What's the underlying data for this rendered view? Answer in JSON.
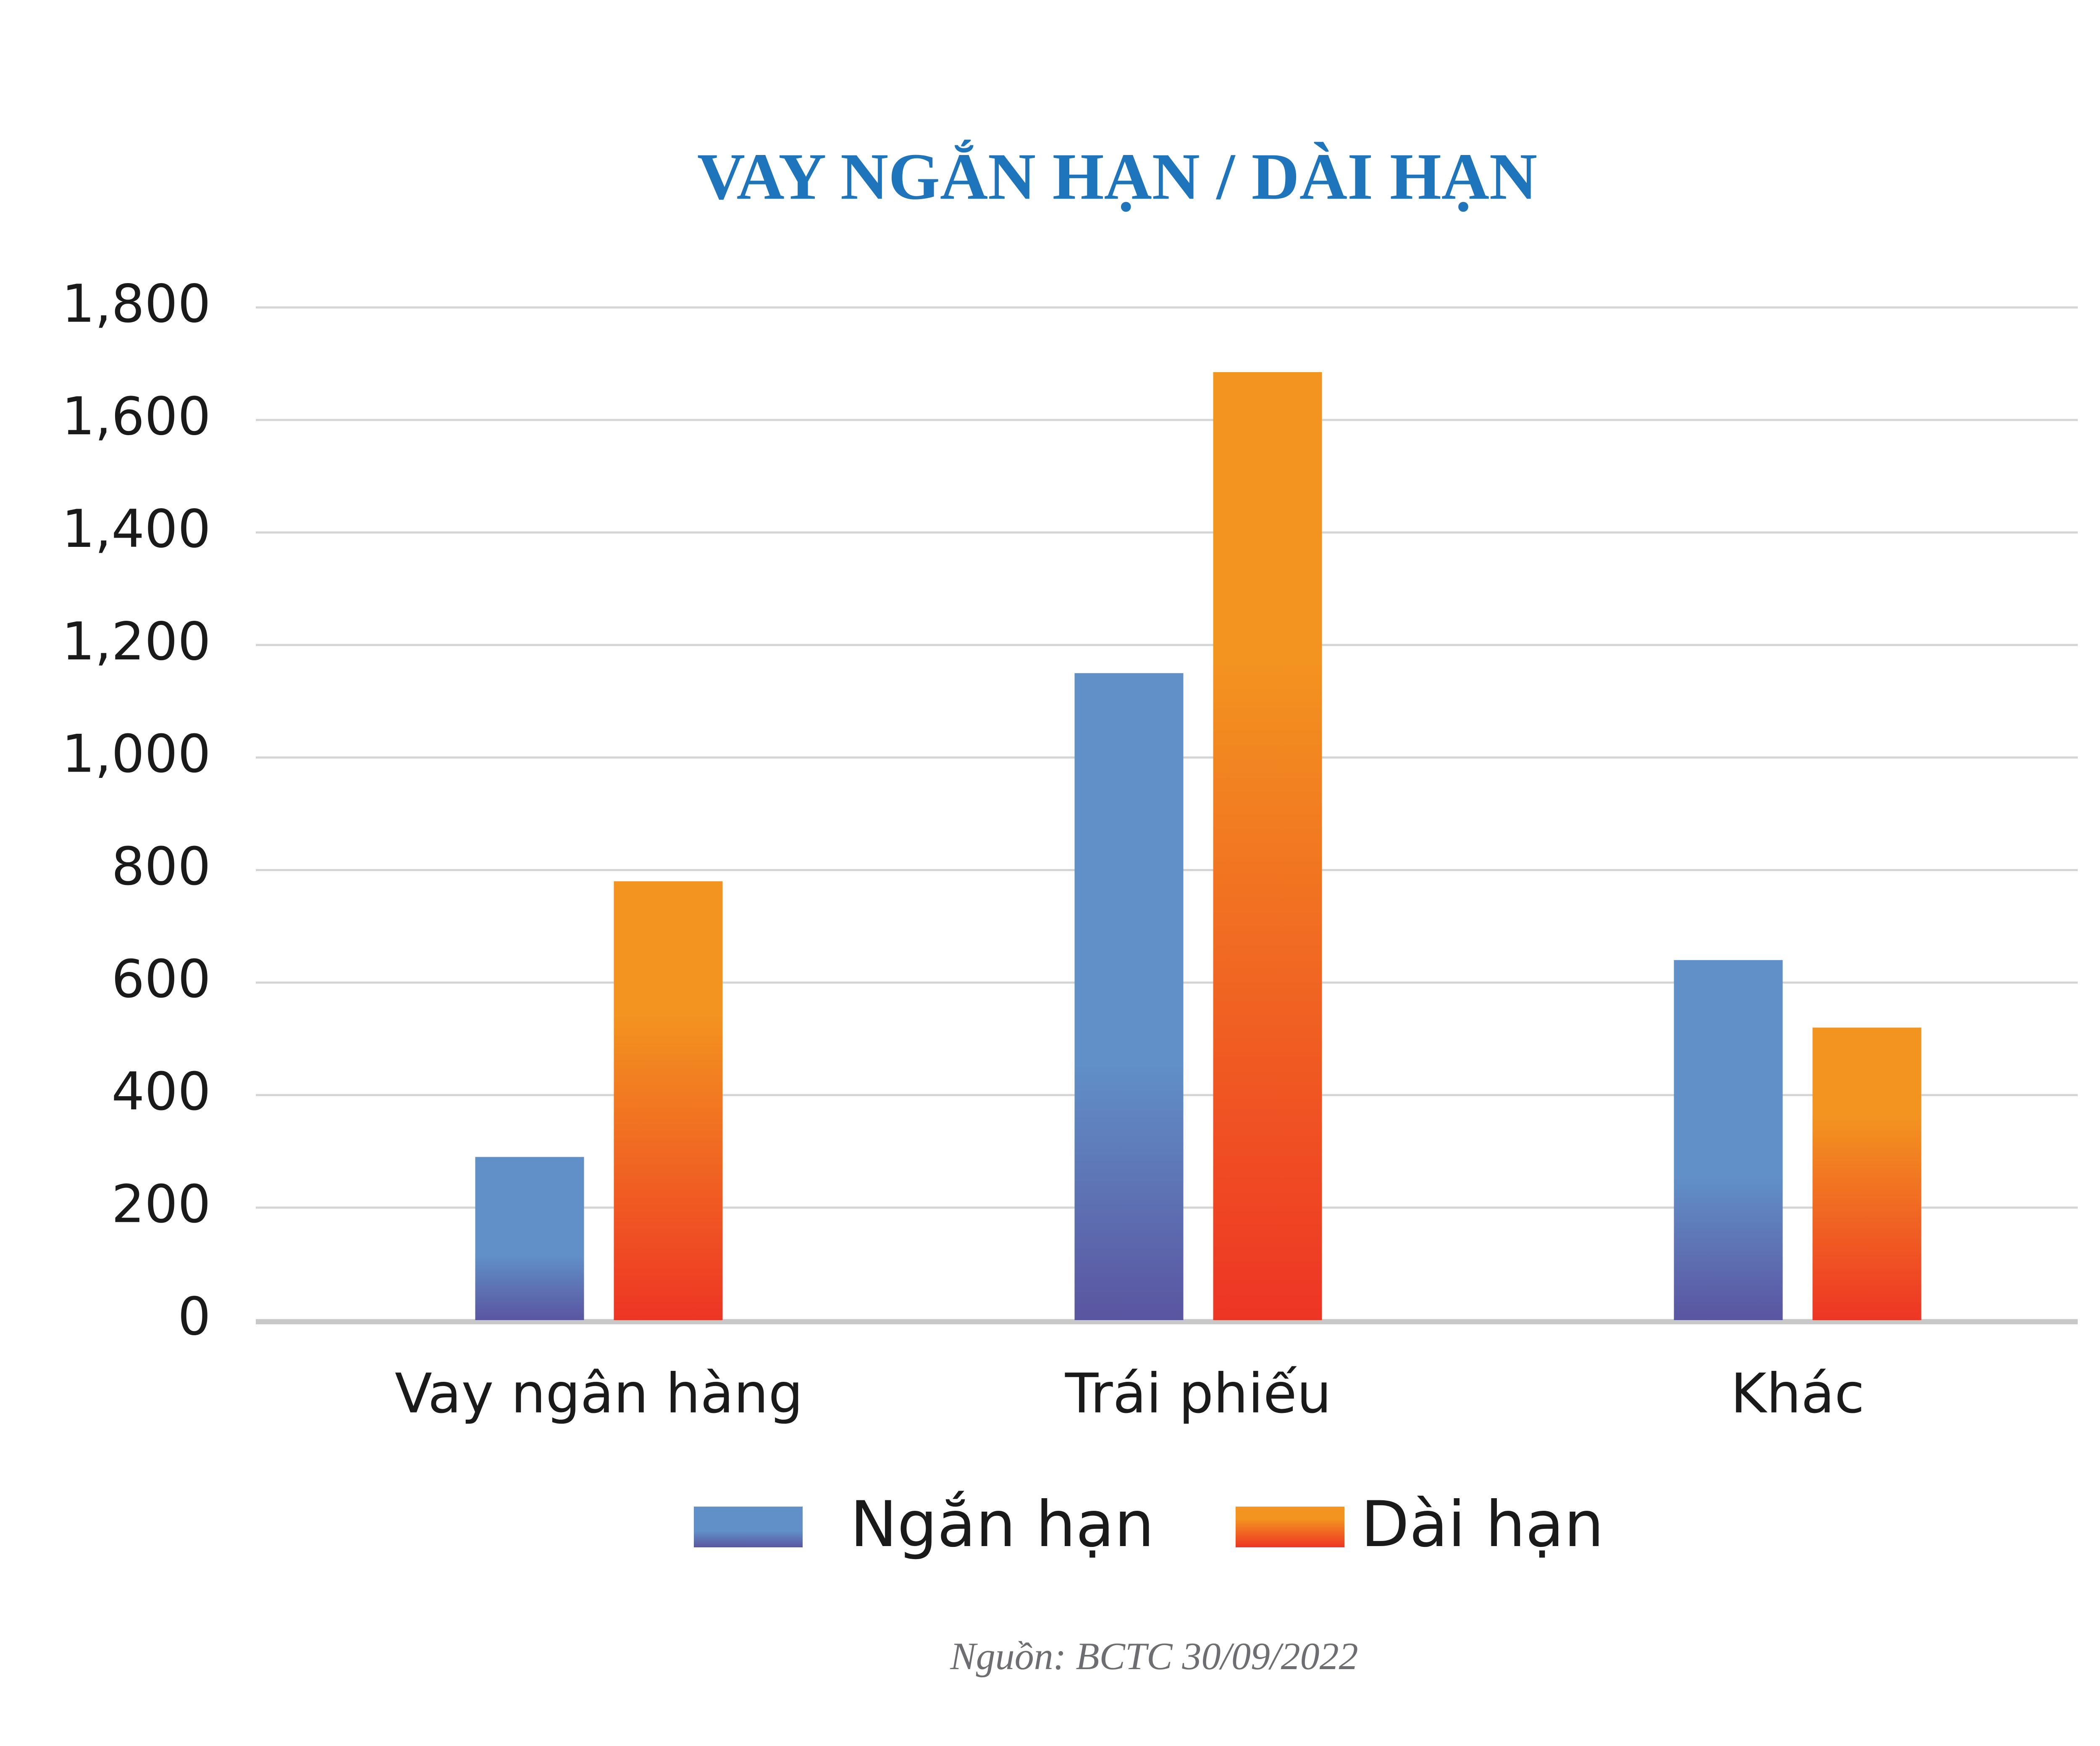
{
  "chart_data": {
    "type": "bar",
    "title": "VAY NGẮN HẠN / DÀI HẠN",
    "categories": [
      "Vay ngân hàng",
      "Trái phiếu",
      "Khác"
    ],
    "series": [
      {
        "name": "Ngắn hạn",
        "color": "#6190c8",
        "values": [
          290,
          1150,
          640
        ]
      },
      {
        "name": "Dài hạn",
        "color": "#f39420",
        "values": [
          780,
          1685,
          520
        ]
      }
    ],
    "ylim": [
      0,
      1800
    ],
    "yticks": [
      0,
      200,
      400,
      600,
      800,
      {
        "value": 1000,
        "label": "1,000"
      },
      {
        "value": 1200,
        "label": "1,200"
      },
      {
        "value": 1400,
        "label": "1,400"
      },
      {
        "value": 1600,
        "label": "1,600"
      },
      {
        "value": 1800,
        "label": "1,800"
      }
    ],
    "grid": true,
    "legend": "bottom",
    "source": "Nguồn: BCTC 30/09/2022"
  }
}
